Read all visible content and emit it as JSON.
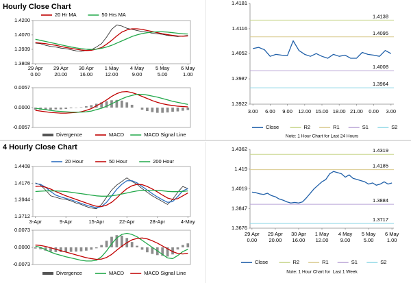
{
  "headings": [
    "Hourly Close Chart",
    "4 Hourly Close Chart"
  ],
  "chart_data": [
    {
      "type": "line",
      "categories": [
        "29 Apr\n0.00",
        null,
        null,
        null,
        null,
        "29 Apr\n20.00",
        null,
        null,
        null,
        null,
        "30 Apr\n16.00",
        null,
        null,
        null,
        null,
        "1 May\n12.00",
        null,
        null,
        null,
        null,
        "4 May\n9.00",
        null,
        null,
        null,
        null,
        "5 May\n5.00",
        null,
        null,
        null,
        null,
        "6 May\n1.00"
      ],
      "color": "#222222",
      "values": [
        1.3995,
        1.399,
        1.3975,
        1.3965,
        1.396,
        1.395,
        1.3945,
        1.3935,
        1.3925,
        1.392,
        1.393,
        1.3935,
        1.396,
        1.399,
        1.405,
        1.412,
        1.416,
        1.415,
        1.413,
        1.412,
        1.411,
        1.41,
        1.4095,
        1.4085,
        1.408,
        1.4075,
        1.4065,
        1.406,
        1.4055,
        1.406,
        1.4065
      ],
      "series": [
        {
          "name": "20 Hr MA",
          "color": "#c00000",
          "values": [
            1.4,
            1.3995,
            1.399,
            1.3982,
            1.3975,
            1.3965,
            1.3955,
            1.3948,
            1.394,
            1.3932,
            1.3928,
            1.393,
            1.394,
            1.3955,
            1.3985,
            1.402,
            1.406,
            1.4095,
            1.4115,
            1.4125,
            1.4125,
            1.412,
            1.411,
            1.41,
            1.409,
            1.408,
            1.4072,
            1.4065,
            1.406,
            1.4058,
            1.406
          ]
        },
        {
          "name": "50 Hrs MA",
          "color": "#22a84a",
          "values": [
            1.403,
            1.402,
            1.401,
            1.4,
            1.399,
            1.398,
            1.397,
            1.396,
            1.3952,
            1.3945,
            1.394,
            1.3938,
            1.394,
            1.3948,
            1.396,
            1.3975,
            1.3995,
            1.4015,
            1.4035,
            1.4055,
            1.407,
            1.4082,
            1.409,
            1.4095,
            1.4098,
            1.4098,
            1.4095,
            1.409,
            1.4085,
            1.408,
            1.4078
          ]
        }
      ],
      "ylim": [
        1.3808,
        1.42
      ],
      "yticks": [
        1.3808,
        1.3939,
        {
          "value": 1.407,
          "label": "1.4070"
        },
        {
          "value": 1.42,
          "label": "1.4200"
        }
      ]
    },
    {
      "type": "macd",
      "categories": [
        null,
        null,
        null,
        null,
        null,
        null,
        null,
        null,
        null,
        null,
        null,
        null,
        null,
        null,
        null,
        null,
        null,
        null,
        null,
        null,
        null,
        null,
        null,
        null,
        null,
        null,
        null,
        null,
        null,
        null,
        null
      ],
      "series": [
        {
          "name": "Divergence",
          "kind": "bar",
          "color": "#8c8c8c",
          "values": [
            -0.0006,
            -0.0006,
            -0.0006,
            -0.0006,
            -0.0005,
            -0.0005,
            -0.0004,
            -0.0002,
            -0.0001,
            0.0001,
            0.0004,
            0.0007,
            0.0011,
            0.0015,
            0.0018,
            0.0021,
            0.0022,
            0.002,
            0.0015,
            0.0008,
            0.0,
            -0.0006,
            -0.001,
            -0.0013,
            -0.0015,
            -0.0015,
            -0.0014,
            -0.0012,
            -0.0011,
            -0.0009,
            -0.0007
          ]
        },
        {
          "name": "MACD",
          "color": "#c00000",
          "values": [
            -0.0008,
            -0.001,
            -0.0012,
            -0.0014,
            -0.0015,
            -0.0016,
            -0.0016,
            -0.0015,
            -0.0014,
            -0.0012,
            -0.0008,
            -0.0003,
            0.0005,
            0.0013,
            0.0022,
            0.0032,
            0.004,
            0.0045,
            0.0046,
            0.0043,
            0.0038,
            0.0032,
            0.0026,
            0.002,
            0.0015,
            0.0011,
            0.0008,
            0.0006,
            0.0004,
            0.0003,
            0.0002
          ]
        },
        {
          "name": "MACD Signal Line",
          "color": "#22a84a",
          "values": [
            -0.0002,
            -0.0004,
            -0.0006,
            -0.0008,
            -0.001,
            -0.0011,
            -0.0012,
            -0.0013,
            -0.0013,
            -0.0013,
            -0.0012,
            -0.001,
            -0.0006,
            -0.0002,
            0.0004,
            0.0011,
            0.0018,
            0.0025,
            0.0031,
            0.0035,
            0.0038,
            0.0038,
            0.0036,
            0.0033,
            0.003,
            0.0026,
            0.0022,
            0.0018,
            0.0015,
            0.0012,
            0.0009
          ]
        }
      ],
      "ylim": [
        -0.0057,
        0.0057
      ],
      "yticks": [
        -0.0057,
        {
          "value": 0,
          "label": "0.0000"
        },
        0.0057
      ]
    },
    {
      "type": "line",
      "categories": [
        "3.00",
        null,
        null,
        "6.00",
        null,
        null,
        "9.00",
        null,
        null,
        "12.00",
        null,
        null,
        "15.00",
        null,
        null,
        "18.00",
        null,
        null,
        "21.00",
        null,
        null,
        "0.00",
        null,
        null,
        "3.00"
      ],
      "series": [
        {
          "name": "Close",
          "color": "#1f5fa8",
          "values": [
            1.4065,
            1.4068,
            1.4062,
            1.4045,
            1.405,
            1.4048,
            1.4047,
            1.4085,
            1.406,
            1.405,
            1.4045,
            1.4052,
            1.4045,
            1.404,
            1.405,
            1.4045,
            1.4048,
            1.404,
            1.404,
            1.4055,
            1.405,
            1.4048,
            1.4045,
            1.406,
            1.4052
          ]
        },
        {
          "name": "R2",
          "color": "#c8d68c",
          "value": 1.4138
        },
        {
          "name": "R1",
          "color": "#d8c98c",
          "value": 1.4095
        },
        {
          "name": "S1",
          "color": "#b9a3d6",
          "value": 1.4008
        },
        {
          "name": "S2",
          "color": "#8fd8e6",
          "value": 1.3964
        }
      ],
      "ylim": [
        1.3922,
        1.4181
      ],
      "yticks": [
        1.3922,
        1.3987,
        1.4052,
        1.4116,
        1.4181
      ],
      "note": "Note: 1 Hour Chart for Last 24 Hours"
    },
    {
      "type": "line",
      "categories": [
        "3-Apr",
        null,
        null,
        null,
        null,
        null,
        "9-Apr",
        null,
        null,
        null,
        null,
        null,
        "15-Apr",
        null,
        null,
        null,
        null,
        null,
        "22-Apr",
        null,
        null,
        null,
        null,
        null,
        "28-Apr",
        null,
        null,
        null,
        null,
        null,
        "4-May"
      ],
      "color": "#222222",
      "values": [
        1.418,
        1.415,
        1.408,
        1.4,
        1.398,
        1.396,
        1.395,
        1.393,
        1.39,
        1.388,
        1.385,
        1.383,
        1.382,
        1.388,
        1.398,
        1.408,
        1.415,
        1.42,
        1.425,
        1.42,
        1.416,
        1.41,
        1.405,
        1.4,
        1.396,
        1.392,
        1.388,
        1.395,
        1.405,
        1.413,
        1.41
      ],
      "series": [
        {
          "name": "20 Hour",
          "color": "#2f6fc0",
          "values": [
            1.417,
            1.416,
            1.412,
            1.406,
            1.401,
            1.3985,
            1.3965,
            1.3945,
            1.392,
            1.3895,
            1.387,
            1.385,
            1.3835,
            1.385,
            1.391,
            1.4,
            1.409,
            1.416,
            1.421,
            1.421,
            1.418,
            1.413,
            1.408,
            1.403,
            1.3985,
            1.3945,
            1.391,
            1.392,
            1.399,
            1.407,
            1.41
          ]
        },
        {
          "name": "50 Hour",
          "color": "#c00000",
          "values": [
            1.413,
            1.4135,
            1.412,
            1.4095,
            1.406,
            1.403,
            1.4,
            1.3975,
            1.395,
            1.3925,
            1.39,
            1.3875,
            1.3855,
            1.385,
            1.387,
            1.391,
            1.397,
            1.404,
            1.41,
            1.414,
            1.416,
            1.4155,
            1.413,
            1.4095,
            1.4055,
            1.401,
            1.397,
            1.395,
            1.396,
            1.4,
            1.404
          ]
        },
        {
          "name": "200 Hour",
          "color": "#22a84a",
          "values": [
            1.406,
            1.4065,
            1.4068,
            1.407,
            1.4068,
            1.4065,
            1.406,
            1.405,
            1.404,
            1.403,
            1.402,
            1.401,
            1.4,
            1.3995,
            1.3995,
            1.4,
            1.401,
            1.4025,
            1.404,
            1.4055,
            1.4068,
            1.4075,
            1.4078,
            1.4078,
            1.4075,
            1.407,
            1.4062,
            1.4058,
            1.4058,
            1.4062,
            1.4068
          ]
        }
      ],
      "ylim": [
        1.3712,
        1.4408
      ],
      "yticks": [
        1.3712,
        1.3944,
        1.4176,
        1.4408
      ]
    },
    {
      "type": "macd",
      "categories": [
        null,
        null,
        null,
        null,
        null,
        null,
        null,
        null,
        null,
        null,
        null,
        null,
        null,
        null,
        null,
        null,
        null,
        null,
        null,
        null,
        null,
        null,
        null,
        null,
        null,
        null,
        null,
        null,
        null,
        null,
        null
      ],
      "series": [
        {
          "name": "Divergence",
          "kind": "bar",
          "color": "#8c8c8c",
          "values": [
            -0.0005,
            -0.0008,
            -0.0014,
            -0.0018,
            -0.002,
            -0.002,
            -0.002,
            -0.0019,
            -0.0018,
            -0.0017,
            -0.0014,
            -0.001,
            -0.0004,
            0.001,
            0.0028,
            0.0045,
            0.0052,
            0.005,
            0.004,
            0.0023,
            0.0007,
            -0.001,
            -0.0021,
            -0.0028,
            -0.0033,
            -0.0036,
            -0.0039,
            -0.003,
            -0.0009,
            0.001,
            0.0017
          ]
        },
        {
          "name": "MACD",
          "color": "#22a84a",
          "values": [
            0.0005,
            0.0,
            -0.001,
            -0.002,
            -0.0028,
            -0.0034,
            -0.004,
            -0.0045,
            -0.005,
            -0.0055,
            -0.0058,
            -0.0058,
            -0.0055,
            -0.004,
            -0.0015,
            0.0015,
            0.004,
            0.0055,
            0.006,
            0.0055,
            0.0045,
            0.003,
            0.0015,
            0.0,
            -0.0015,
            -0.003,
            -0.0045,
            -0.0048,
            -0.0035,
            -0.0018,
            -0.0008
          ]
        },
        {
          "name": "MACD Signal Line",
          "color": "#c00000",
          "values": [
            0.001,
            0.0008,
            0.0004,
            -0.0002,
            -0.0008,
            -0.0014,
            -0.002,
            -0.0026,
            -0.0032,
            -0.0038,
            -0.0044,
            -0.0048,
            -0.0051,
            -0.005,
            -0.0043,
            -0.003,
            -0.0012,
            0.0005,
            0.002,
            0.0032,
            0.0038,
            0.004,
            0.0036,
            0.0028,
            0.0018,
            0.0006,
            -0.0006,
            -0.0018,
            -0.0026,
            -0.0028,
            -0.0025
          ]
        }
      ],
      "ylim": [
        -0.0073,
        0.0073
      ],
      "yticks": [
        -0.0073,
        {
          "value": 0,
          "label": "0.0000"
        },
        0.0073
      ]
    },
    {
      "type": "line",
      "categories": [
        "29 Apr\n0.00",
        null,
        null,
        null,
        null,
        null,
        "29 Apr\n20.00",
        null,
        null,
        null,
        null,
        null,
        "30 Apr\n16.00",
        null,
        null,
        null,
        null,
        null,
        "1 May\n12.00",
        null,
        null,
        null,
        null,
        null,
        "4 May\n9.00",
        null,
        null,
        null,
        null,
        null,
        "5 May\n5.00",
        null,
        null,
        null,
        null,
        null,
        "6 May\n1.00"
      ],
      "series": [
        {
          "name": "Close",
          "color": "#1f5fa8",
          "values": [
            1.399,
            1.3985,
            1.3975,
            1.397,
            1.398,
            1.396,
            1.395,
            1.393,
            1.392,
            1.3905,
            1.3895,
            1.39,
            1.3895,
            1.3905,
            1.394,
            1.398,
            1.402,
            1.405,
            1.408,
            1.41,
            1.415,
            1.417,
            1.416,
            1.415,
            1.412,
            1.414,
            1.411,
            1.41,
            1.409,
            1.408,
            1.406,
            1.407,
            1.405,
            1.406,
            1.408,
            1.406,
            1.407
          ]
        },
        {
          "name": "R2",
          "color": "#c8d68c",
          "value": 1.4319
        },
        {
          "name": "R1",
          "color": "#d8c98c",
          "value": 1.4185
        },
        {
          "name": "S1",
          "color": "#b9a3d6",
          "value": 1.3884
        },
        {
          "name": "S2",
          "color": "#8fd8e6",
          "value": 1.3717
        }
      ],
      "ylim": [
        1.3676,
        1.4362
      ],
      "yticks": [
        1.3676,
        1.3847,
        1.4019,
        1.419,
        1.4362
      ],
      "note": "Note: 1 Hour Chart for  Last 1 Week"
    }
  ]
}
